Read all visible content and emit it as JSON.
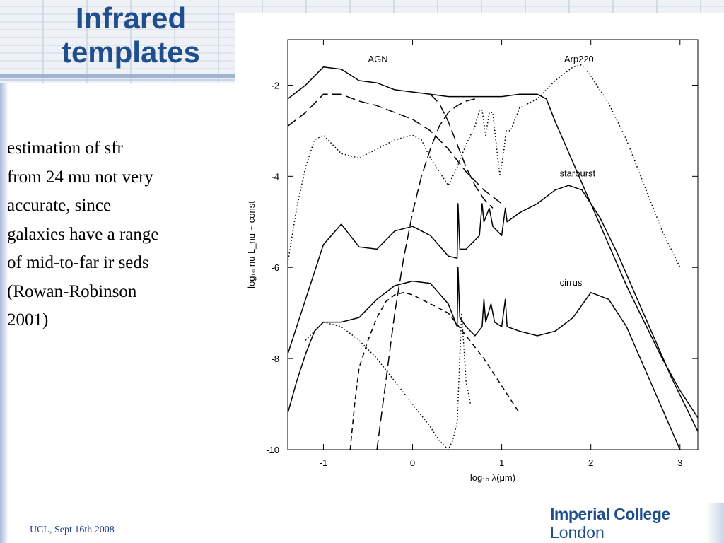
{
  "slide": {
    "title_line1": "Infrared",
    "title_line2": "templates",
    "body": "estimation of sfr\nfrom 24 mu not very\naccurate, since\ngalaxies have a range\nof mid-to-far ir seds\n(Rowan-Robinson\n2001)",
    "footer": "UCL, Sept 16th 2008",
    "logo_line1": "Imperial College",
    "logo_line2": "London",
    "accent_color": "#1f4e8c"
  },
  "chart_data": {
    "type": "line",
    "title": "",
    "xlabel": "log₁₀ λ(μm)",
    "ylabel": "log₁₀ nu L_nu + const",
    "xlim": [
      -1.4,
      3.2
    ],
    "ylim": [
      -10,
      -1.0
    ],
    "xticks": [
      -1,
      0,
      1,
      2,
      3
    ],
    "yticks": [
      -2,
      -4,
      -6,
      -8,
      -10
    ],
    "grid": false,
    "legend": "none",
    "annotations": [
      {
        "text": "AGN",
        "x": -0.5,
        "y": -1.5
      },
      {
        "text": "Arp220",
        "x": 1.7,
        "y": -1.5
      },
      {
        "text": "starburst",
        "x": 1.65,
        "y": -4.0
      },
      {
        "text": "cirrus",
        "x": 1.65,
        "y": -6.4
      }
    ],
    "series": [
      {
        "style": "solid",
        "points": [
          [
            -1.4,
            -2.3
          ],
          [
            -1.2,
            -2.0
          ],
          [
            -1.0,
            -1.6
          ],
          [
            -0.8,
            -1.65
          ],
          [
            -0.6,
            -1.9
          ],
          [
            -0.4,
            -1.95
          ],
          [
            -0.2,
            -2.1
          ],
          [
            0.0,
            -2.15
          ],
          [
            0.2,
            -2.2
          ],
          [
            0.4,
            -2.25
          ],
          [
            0.6,
            -2.25
          ],
          [
            0.8,
            -2.25
          ],
          [
            1.0,
            -2.25
          ],
          [
            1.2,
            -2.2
          ],
          [
            1.4,
            -2.2
          ],
          [
            1.5,
            -2.3
          ],
          [
            1.6,
            -2.8
          ],
          [
            1.8,
            -3.7
          ],
          [
            2.0,
            -4.6
          ],
          [
            2.2,
            -5.5
          ],
          [
            2.4,
            -6.4
          ],
          [
            2.6,
            -7.2
          ],
          [
            2.8,
            -8.0
          ],
          [
            3.0,
            -8.7
          ],
          [
            3.2,
            -9.3
          ]
        ]
      },
      {
        "style": "solid",
        "points": [
          [
            -1.4,
            -7.9
          ],
          [
            -1.2,
            -6.7
          ],
          [
            -1.0,
            -5.5
          ],
          [
            -0.8,
            -5.05
          ],
          [
            -0.6,
            -5.55
          ],
          [
            -0.4,
            -5.6
          ],
          [
            -0.2,
            -5.2
          ],
          [
            0.0,
            -5.1
          ],
          [
            0.2,
            -5.3
          ],
          [
            0.4,
            -5.75
          ],
          [
            0.5,
            -5.8
          ],
          [
            0.51,
            -4.6
          ],
          [
            0.53,
            -5.6
          ],
          [
            0.6,
            -5.6
          ],
          [
            0.75,
            -5.3
          ],
          [
            0.78,
            -4.6
          ],
          [
            0.8,
            -5.0
          ],
          [
            0.86,
            -4.7
          ],
          [
            0.9,
            -5.1
          ],
          [
            1.0,
            -5.3
          ],
          [
            1.04,
            -4.7
          ],
          [
            1.06,
            -5.0
          ],
          [
            1.2,
            -4.8
          ],
          [
            1.4,
            -4.6
          ],
          [
            1.6,
            -4.3
          ],
          [
            1.75,
            -4.2
          ],
          [
            1.9,
            -4.3
          ],
          [
            2.1,
            -4.9
          ],
          [
            2.3,
            -5.7
          ],
          [
            2.5,
            -6.6
          ],
          [
            2.7,
            -7.5
          ],
          [
            2.9,
            -8.4
          ],
          [
            3.1,
            -9.2
          ],
          [
            3.2,
            -9.6
          ]
        ]
      },
      {
        "style": "solid",
        "points": [
          [
            -1.4,
            -9.2
          ],
          [
            -1.3,
            -8.5
          ],
          [
            -1.2,
            -7.9
          ],
          [
            -1.1,
            -7.4
          ],
          [
            -1.0,
            -7.2
          ],
          [
            -0.8,
            -7.2
          ],
          [
            -0.6,
            -7.1
          ],
          [
            -0.4,
            -6.7
          ],
          [
            -0.2,
            -6.4
          ],
          [
            0.0,
            -6.3
          ],
          [
            0.2,
            -6.35
          ],
          [
            0.4,
            -6.8
          ],
          [
            0.5,
            -7.3
          ],
          [
            0.51,
            -6.0
          ],
          [
            0.53,
            -7.1
          ],
          [
            0.6,
            -7.3
          ],
          [
            0.7,
            -7.5
          ],
          [
            0.78,
            -7.3
          ],
          [
            0.8,
            -6.7
          ],
          [
            0.82,
            -7.2
          ],
          [
            0.88,
            -6.8
          ],
          [
            0.92,
            -7.2
          ],
          [
            1.0,
            -7.3
          ],
          [
            1.04,
            -6.7
          ],
          [
            1.06,
            -7.3
          ],
          [
            1.2,
            -7.4
          ],
          [
            1.4,
            -7.5
          ],
          [
            1.6,
            -7.4
          ],
          [
            1.8,
            -7.1
          ],
          [
            2.0,
            -6.55
          ],
          [
            2.2,
            -6.7
          ],
          [
            2.4,
            -7.3
          ],
          [
            2.6,
            -8.2
          ],
          [
            2.8,
            -9.1
          ],
          [
            3.0,
            -10.0
          ]
        ]
      },
      {
        "style": "longdash",
        "points": [
          [
            -1.4,
            -2.9
          ],
          [
            -1.2,
            -2.6
          ],
          [
            -1.0,
            -2.2
          ],
          [
            -0.8,
            -2.2
          ],
          [
            -0.6,
            -2.35
          ],
          [
            -0.4,
            -2.45
          ],
          [
            -0.2,
            -2.6
          ],
          [
            0.0,
            -2.75
          ],
          [
            0.2,
            -3.0
          ],
          [
            0.4,
            -3.4
          ],
          [
            0.6,
            -3.9
          ],
          [
            0.8,
            -4.3
          ],
          [
            1.0,
            -4.6
          ]
        ]
      },
      {
        "style": "longdash",
        "points": [
          [
            -0.4,
            -10.0
          ],
          [
            -0.3,
            -8.5
          ],
          [
            -0.2,
            -7.0
          ],
          [
            -0.1,
            -5.8
          ],
          [
            0.0,
            -4.8
          ],
          [
            0.1,
            -4.0
          ],
          [
            0.2,
            -3.4
          ],
          [
            0.3,
            -2.9
          ],
          [
            0.4,
            -2.6
          ],
          [
            0.5,
            -2.45
          ],
          [
            0.6,
            -2.35
          ],
          [
            0.7,
            -2.3
          ]
        ]
      },
      {
        "style": "longdash",
        "points": [
          [
            0.2,
            -2.2
          ],
          [
            0.3,
            -2.4
          ],
          [
            0.4,
            -2.8
          ],
          [
            0.5,
            -3.3
          ],
          [
            0.6,
            -3.8
          ],
          [
            0.7,
            -4.2
          ],
          [
            0.8,
            -4.5
          ],
          [
            0.9,
            -4.7
          ]
        ]
      },
      {
        "style": "shortdash",
        "points": [
          [
            -0.7,
            -10.0
          ],
          [
            -0.65,
            -9.0
          ],
          [
            -0.6,
            -8.2
          ],
          [
            -0.5,
            -7.6
          ],
          [
            -0.4,
            -7.1
          ],
          [
            -0.3,
            -6.75
          ],
          [
            -0.2,
            -6.6
          ],
          [
            -0.1,
            -6.55
          ],
          [
            0.0,
            -6.6
          ],
          [
            0.2,
            -6.8
          ],
          [
            0.4,
            -7.0
          ],
          [
            0.6,
            -7.5
          ],
          [
            0.8,
            -8.0
          ],
          [
            1.0,
            -8.6
          ],
          [
            1.2,
            -9.2
          ]
        ]
      },
      {
        "style": "dotted",
        "points": [
          [
            -1.4,
            -5.9
          ],
          [
            -1.3,
            -4.7
          ],
          [
            -1.2,
            -3.8
          ],
          [
            -1.1,
            -3.2
          ],
          [
            -1.0,
            -3.1
          ],
          [
            -0.8,
            -3.5
          ],
          [
            -0.6,
            -3.6
          ],
          [
            -0.4,
            -3.4
          ],
          [
            -0.2,
            -3.2
          ],
          [
            0.0,
            -3.1
          ],
          [
            0.1,
            -3.2
          ],
          [
            0.2,
            -3.6
          ],
          [
            0.3,
            -3.9
          ],
          [
            0.4,
            -4.2
          ],
          [
            0.5,
            -3.8
          ],
          [
            0.6,
            -3.3
          ],
          [
            0.7,
            -2.9
          ],
          [
            0.75,
            -2.55
          ],
          [
            0.78,
            -2.55
          ],
          [
            0.82,
            -3.1
          ],
          [
            0.86,
            -2.6
          ],
          [
            0.9,
            -2.6
          ],
          [
            0.95,
            -3.5
          ],
          [
            0.98,
            -4.0
          ],
          [
            1.02,
            -3.5
          ],
          [
            1.05,
            -3.0
          ],
          [
            1.1,
            -3.0
          ],
          [
            1.2,
            -2.5
          ],
          [
            1.4,
            -2.3
          ],
          [
            1.6,
            -1.9
          ],
          [
            1.8,
            -1.6
          ],
          [
            1.9,
            -1.55
          ],
          [
            2.0,
            -1.8
          ],
          [
            2.2,
            -2.4
          ],
          [
            2.4,
            -3.2
          ],
          [
            2.6,
            -4.2
          ],
          [
            2.8,
            -5.2
          ],
          [
            3.0,
            -6.0
          ]
        ]
      },
      {
        "style": "dotted",
        "points": [
          [
            -1.2,
            -7.6
          ],
          [
            -1.0,
            -7.2
          ],
          [
            -0.8,
            -7.3
          ],
          [
            -0.6,
            -7.6
          ],
          [
            -0.4,
            -8.0
          ],
          [
            -0.2,
            -8.5
          ],
          [
            0.0,
            -9.0
          ],
          [
            0.2,
            -9.5
          ],
          [
            0.3,
            -9.8
          ],
          [
            0.4,
            -10.0
          ],
          [
            0.45,
            -9.8
          ],
          [
            0.5,
            -9.4
          ],
          [
            0.55,
            -7.0
          ],
          [
            0.6,
            -8.5
          ],
          [
            0.65,
            -9.0
          ]
        ]
      }
    ]
  }
}
